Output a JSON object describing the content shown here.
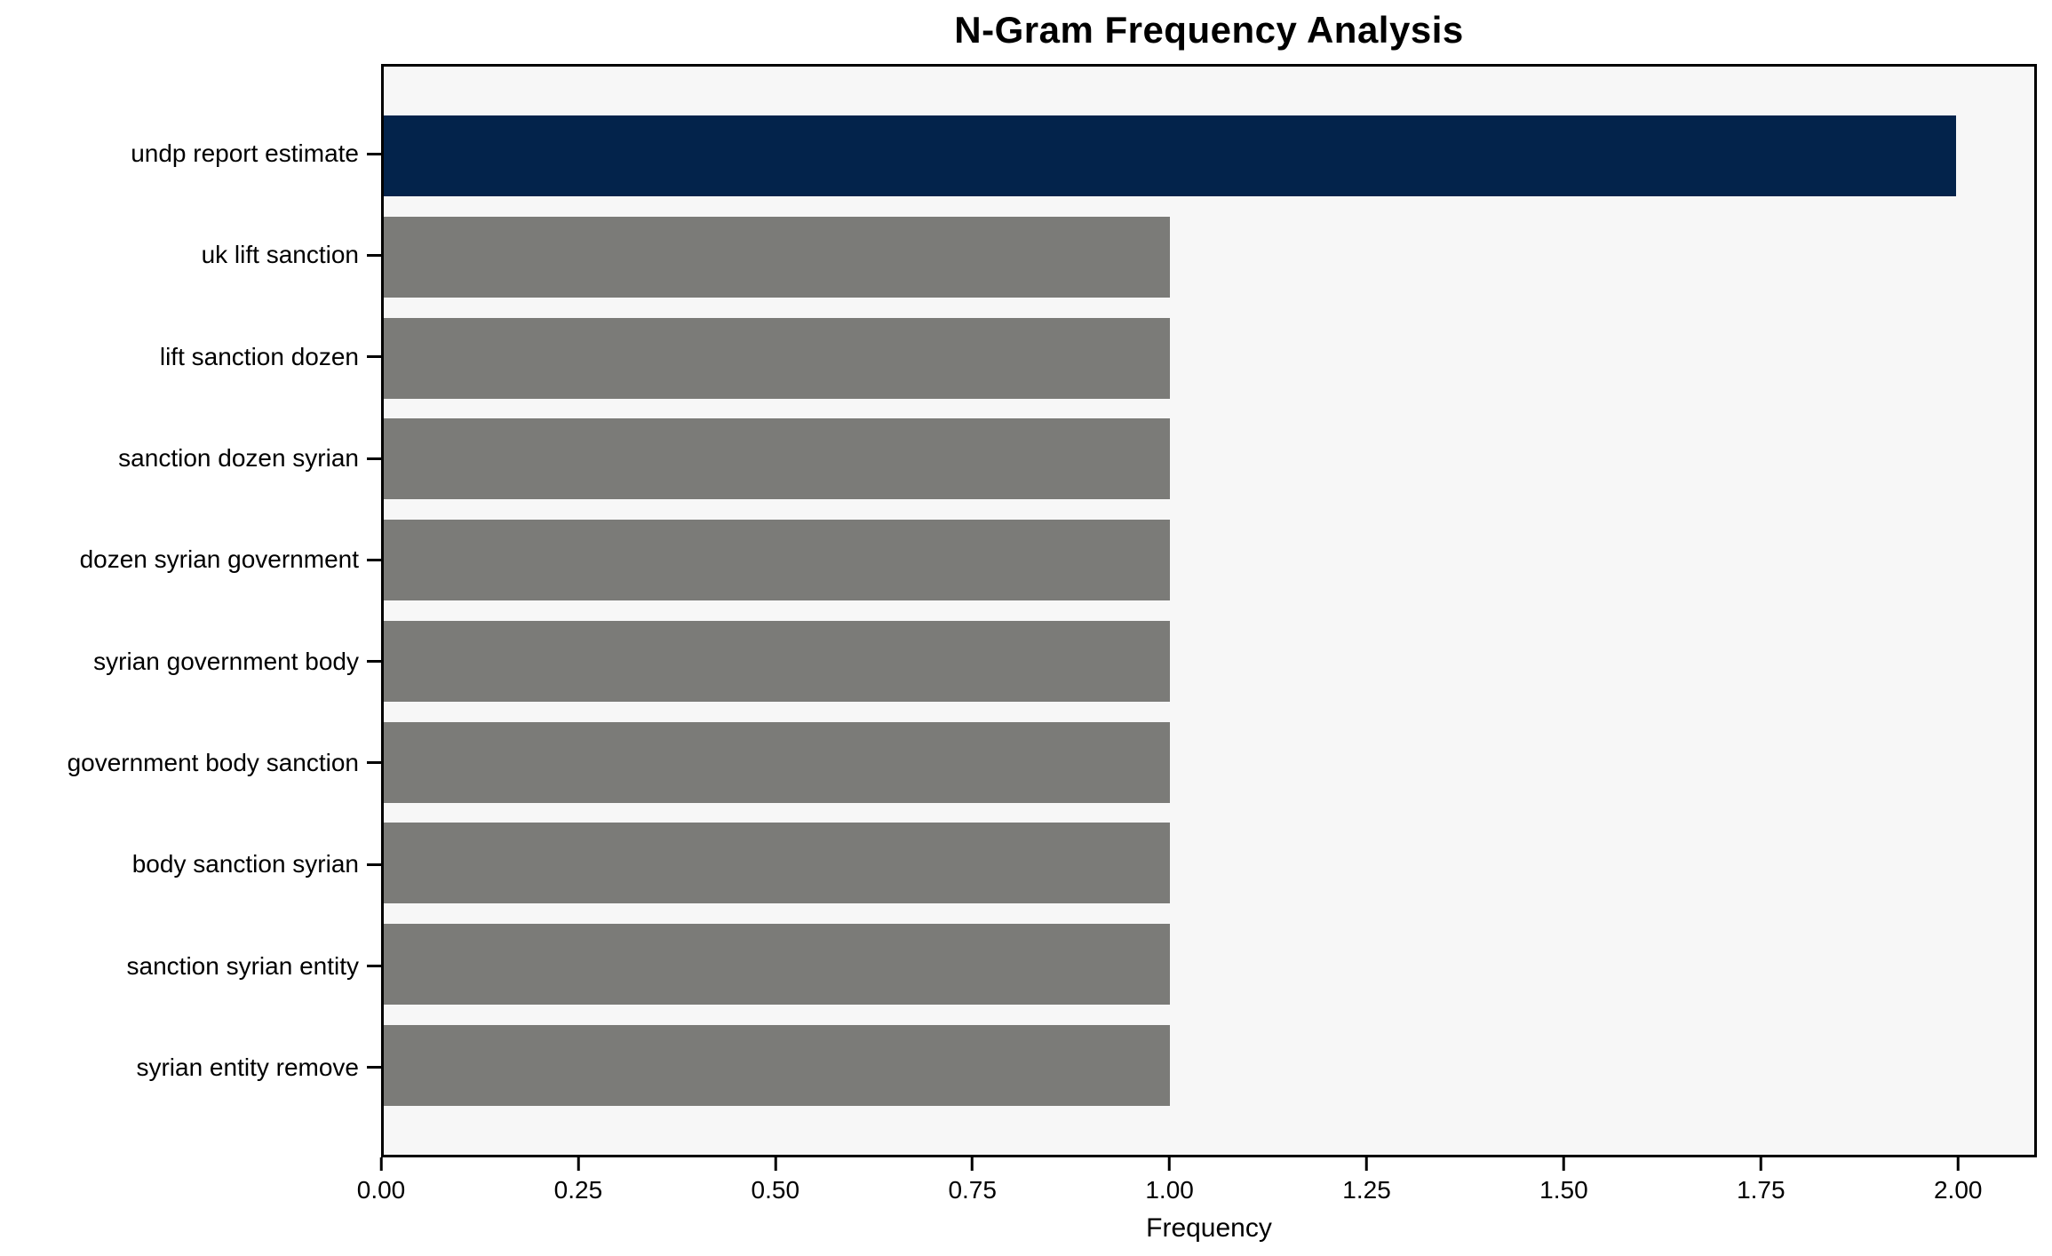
{
  "chart_data": {
    "type": "bar",
    "orientation": "horizontal",
    "title": "N-Gram Frequency Analysis",
    "xlabel": "Frequency",
    "ylabel": "",
    "categories": [
      "undp report estimate",
      "uk lift sanction",
      "lift sanction dozen",
      "sanction dozen syrian",
      "dozen syrian government",
      "syrian government body",
      "government body sanction",
      "body sanction syrian",
      "sanction syrian entity",
      "syrian entity remove"
    ],
    "values": [
      2,
      1,
      1,
      1,
      1,
      1,
      1,
      1,
      1,
      1
    ],
    "bar_colors": [
      "#03234b",
      "#7b7b78",
      "#7b7b78",
      "#7b7b78",
      "#7b7b78",
      "#7b7b78",
      "#7b7b78",
      "#7b7b78",
      "#7b7b78",
      "#7b7b78"
    ],
    "highlight_color": "#03234b",
    "default_bar_color": "#7b7b78",
    "xlim": [
      0,
      2.1
    ],
    "x_ticks": [
      0,
      0.25,
      0.5,
      0.75,
      1.0,
      1.25,
      1.5,
      1.75,
      2.0
    ],
    "x_tick_labels": [
      "0.00",
      "0.25",
      "0.50",
      "0.75",
      "1.00",
      "1.25",
      "1.50",
      "1.75",
      "2.00"
    ],
    "plot_background": "#f7f7f7",
    "grid": false,
    "legend_position": "none"
  }
}
